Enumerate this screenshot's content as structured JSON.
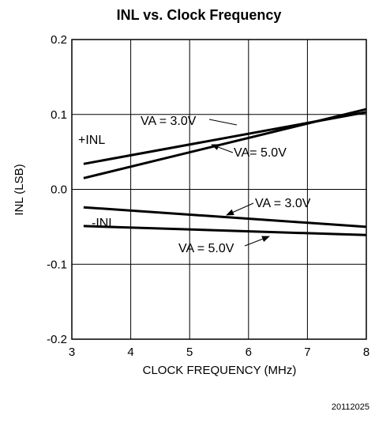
{
  "chart_data": {
    "type": "line",
    "title": "INL vs. Clock Frequency",
    "xlabel": "CLOCK FREQUENCY (MHz)",
    "ylabel": "INL (LSB)",
    "xlim": [
      3,
      8
    ],
    "ylim": [
      -0.2,
      0.2
    ],
    "x_ticks": [
      "3",
      "4",
      "5",
      "6",
      "7",
      "8"
    ],
    "y_ticks": [
      "0.2",
      "0.1",
      "0.0",
      "-0.1",
      "-0.2"
    ],
    "grid": true,
    "series": [
      {
        "x": [
          3.2,
          8.0
        ],
        "y": [
          0.034,
          0.103
        ]
      },
      {
        "x": [
          3.2,
          8.0
        ],
        "y": [
          0.015,
          0.107
        ]
      },
      {
        "x": [
          3.2,
          8.0
        ],
        "y": [
          -0.024,
          -0.05
        ]
      },
      {
        "x": [
          3.2,
          8.0
        ],
        "y": [
          -0.049,
          -0.061
        ]
      }
    ],
    "annotations": {
      "plus_inl": "+INL",
      "minus_inl": "-INL",
      "va30_upper": "VA = 3.0V",
      "va50_upper": "VA= 5.0V",
      "va30_lower": "VA = 3.0V",
      "va50_lower": "VA = 5.0V"
    },
    "figure_code": "20112025"
  }
}
